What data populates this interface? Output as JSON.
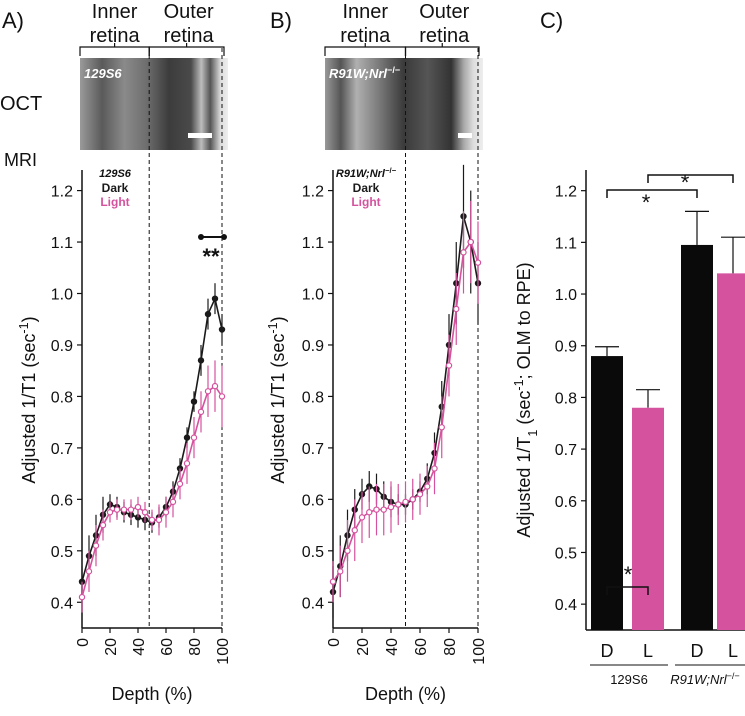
{
  "figure": {
    "oct_label": "OCT",
    "mri_label": "MRI"
  },
  "chart_data": [
    {
      "type": "line",
      "panel": "A)",
      "inner_label": [
        "Inner",
        "retina"
      ],
      "outer_label": [
        "Outer",
        "retina"
      ],
      "genotype": [
        "129S6"
      ],
      "xlabel": "Depth (%)",
      "ylabel": [
        "Adjusted 1/T1 (sec",
        "-1",
        ")"
      ],
      "xlim": [
        0,
        100
      ],
      "xticks": [
        0,
        20,
        40,
        60,
        80,
        100
      ],
      "ylim": [
        0.35,
        1.24
      ],
      "yticks": [
        0.4,
        0.5,
        0.6,
        0.7,
        0.8,
        0.9,
        {
          "value": 1.0,
          "label": "1.0"
        },
        1.1,
        1.2
      ],
      "boundary_x": 48,
      "annotation": "**",
      "x": [
        0,
        5,
        10,
        15,
        20,
        25,
        30,
        35,
        40,
        45,
        50,
        55,
        60,
        65,
        70,
        75,
        80,
        85,
        90,
        95,
        100
      ],
      "series": [
        {
          "name": "Dark",
          "color": "#1a1a1a",
          "values": [
            0.44,
            0.49,
            0.53,
            0.57,
            0.59,
            0.585,
            0.575,
            0.57,
            0.565,
            0.56,
            0.555,
            0.565,
            0.585,
            0.615,
            0.66,
            0.72,
            0.79,
            0.87,
            0.96,
            0.99,
            0.93
          ],
          "errors": [
            0.03,
            0.04,
            0.04,
            0.035,
            0.02,
            0.02,
            0.02,
            0.02,
            0.02,
            0.02,
            0.02,
            0.02,
            0.02,
            0.02,
            0.02,
            0.02,
            0.02,
            0.03,
            0.03,
            0.03,
            0.03
          ]
        },
        {
          "name": "Light",
          "color": "#d4529e",
          "values": [
            0.41,
            0.46,
            0.51,
            0.55,
            0.575,
            0.58,
            0.58,
            0.58,
            0.585,
            0.575,
            0.56,
            0.56,
            0.575,
            0.595,
            0.63,
            0.67,
            0.72,
            0.77,
            0.81,
            0.82,
            0.8
          ],
          "errors": [
            0.03,
            0.04,
            0.04,
            0.03,
            0.02,
            0.02,
            0.02,
            0.02,
            0.02,
            0.02,
            0.02,
            0.03,
            0.03,
            0.03,
            0.03,
            0.04,
            0.04,
            0.04,
            0.05,
            0.05,
            0.06
          ]
        }
      ]
    },
    {
      "type": "line",
      "panel": "B)",
      "inner_label": [
        "Inner",
        "retina"
      ],
      "outer_label": [
        "Outer",
        "retina"
      ],
      "genotype": [
        "R91W;Nrl",
        "−/−"
      ],
      "xlabel": "Depth (%)",
      "ylabel": [
        "Adjusted 1/T1 (sec",
        "-1",
        ")"
      ],
      "xlim": [
        0,
        100
      ],
      "xticks": [
        0,
        20,
        40,
        60,
        80,
        100
      ],
      "ylim": [
        0.35,
        1.24
      ],
      "yticks": [
        0.4,
        0.5,
        0.6,
        0.7,
        0.8,
        0.9,
        {
          "value": 1.0,
          "label": "1.0"
        },
        1.1,
        1.2
      ],
      "boundary_x": 50,
      "x": [
        0,
        5,
        10,
        15,
        20,
        25,
        30,
        35,
        40,
        45,
        50,
        55,
        60,
        65,
        70,
        75,
        80,
        85,
        90,
        95,
        100
      ],
      "series": [
        {
          "name": "Dark",
          "color": "#1a1a1a",
          "values": [
            0.42,
            0.47,
            0.53,
            0.58,
            0.61,
            0.625,
            0.62,
            0.605,
            0.595,
            0.59,
            0.59,
            0.6,
            0.615,
            0.64,
            0.69,
            0.78,
            0.9,
            1.02,
            1.15,
            1.1,
            1.02
          ],
          "errors": [
            0.05,
            0.06,
            0.05,
            0.04,
            0.03,
            0.03,
            0.03,
            0.03,
            0.03,
            0.02,
            0.02,
            0.02,
            0.02,
            0.03,
            0.04,
            0.05,
            0.06,
            0.08,
            0.1,
            0.1,
            0.08
          ]
        },
        {
          "name": "Light",
          "color": "#d4529e",
          "values": [
            0.44,
            0.46,
            0.5,
            0.54,
            0.565,
            0.575,
            0.58,
            0.58,
            0.585,
            0.59,
            0.595,
            0.6,
            0.61,
            0.625,
            0.66,
            0.74,
            0.86,
            0.97,
            1.08,
            1.1,
            1.06
          ],
          "errors": [
            0.04,
            0.05,
            0.06,
            0.06,
            0.05,
            0.05,
            0.05,
            0.05,
            0.05,
            0.04,
            0.04,
            0.04,
            0.04,
            0.04,
            0.05,
            0.06,
            0.06,
            0.07,
            0.08,
            0.08,
            0.08
          ]
        }
      ]
    },
    {
      "type": "bar",
      "panel": "C)",
      "ylabel": [
        "Adjusted 1/T",
        "1",
        " (sec",
        "-1",
        "; OLM to RPE)"
      ],
      "ylim": [
        0.35,
        1.24
      ],
      "yticks": [
        0.4,
        0.5,
        0.6,
        0.7,
        0.8,
        0.9,
        {
          "value": 1.0,
          "label": "1.0"
        },
        1.1,
        1.2
      ],
      "categories": [
        "D",
        "L",
        "D",
        "L"
      ],
      "values": [
        0.88,
        0.78,
        1.095,
        1.04
      ],
      "errors": [
        0.018,
        0.035,
        0.065,
        0.07
      ],
      "colors": [
        "#0a0a0a",
        "#d4529e",
        "#0a0a0a",
        "#d4529e"
      ],
      "groups": [
        [
          "129S6"
        ],
        [
          "R91W;Nrl",
          "−/−"
        ]
      ],
      "annotations": [
        "*",
        "*",
        "*"
      ]
    }
  ]
}
